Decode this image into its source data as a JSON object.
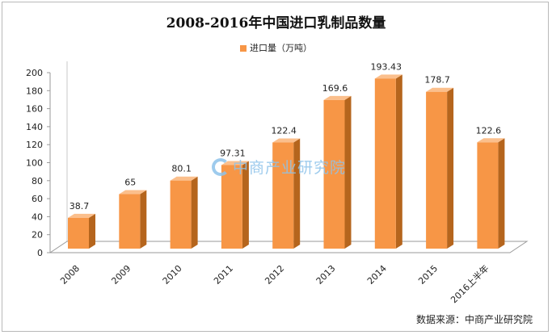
{
  "chart_data": {
    "type": "bar",
    "title": "2008-2016年中国进口乳制品数量",
    "categories": [
      "2008",
      "2009",
      "2010",
      "2011",
      "2012",
      "2013",
      "2014",
      "2015",
      "2016上半年"
    ],
    "series": [
      {
        "name": "进口量（万吨）",
        "values": [
          38.7,
          65,
          80.1,
          97.31,
          122.4,
          169.6,
          193.43,
          178.7,
          122.6
        ]
      }
    ],
    "data_labels": [
      "38.7",
      "65",
      "80.1",
      "97.31",
      "122.4",
      "169.6",
      "193.43",
      "178.7",
      "122.6"
    ],
    "y_ticks": [
      0,
      20,
      40,
      60,
      80,
      100,
      120,
      140,
      160,
      180,
      200
    ],
    "ylim": [
      0,
      200
    ],
    "xlabel": "",
    "ylabel": "",
    "grid": false,
    "legend_position": "top",
    "bar_color": "#f79646",
    "bar_side_color": "#b5651d",
    "bar_top_color": "#fbbf8c"
  },
  "watermark": "中商产业研究院",
  "source": "数据来源：中商产业研究院"
}
